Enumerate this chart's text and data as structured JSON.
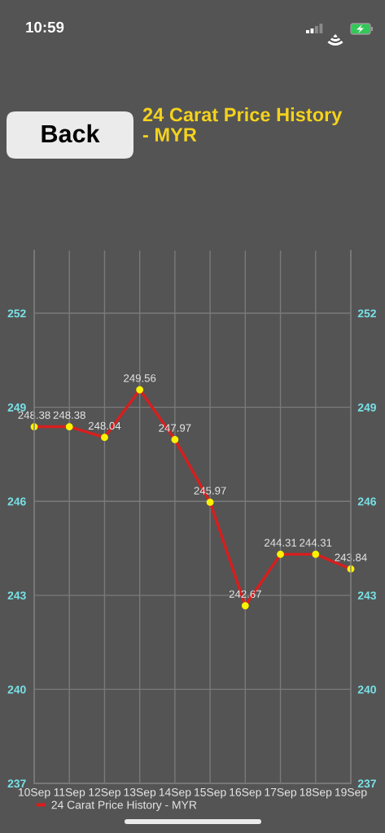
{
  "chart_data": {
    "type": "line",
    "title": "24 Carat Price History - MYR",
    "categories": [
      "10Sep",
      "11Sep",
      "12Sep",
      "13Sep",
      "14Sep",
      "15Sep",
      "16Sep",
      "17Sep",
      "18Sep",
      "19Sep"
    ],
    "series": [
      {
        "name": "24 Carat Price History - MYR",
        "color": "#d81e1e",
        "axis": "y",
        "colors": [
          "#fff200",
          "#fff200",
          "#fff200",
          "#fff200",
          "#fff200",
          "#fff200",
          "#fff200",
          "#fff200",
          "#fff200",
          "#fff200"
        ],
        "values": [
          248.38,
          248.38,
          248.04,
          249.56,
          247.97,
          245.97,
          242.67,
          244.31,
          244.31,
          243.84
        ]
      }
    ],
    "ylim": [
      237,
      254
    ],
    "yticks": [
      237,
      240,
      243,
      246,
      249,
      252
    ],
    "y2lim": [
      237,
      254
    ],
    "y2ticks": [
      237,
      240,
      243,
      246,
      249,
      252
    ],
    "grid": true,
    "legend": "bottom left",
    "marker": "circle",
    "line_style": "solid",
    "data_labels": true,
    "annotations": [
      "10:59",
      "Back"
    ]
  }
}
